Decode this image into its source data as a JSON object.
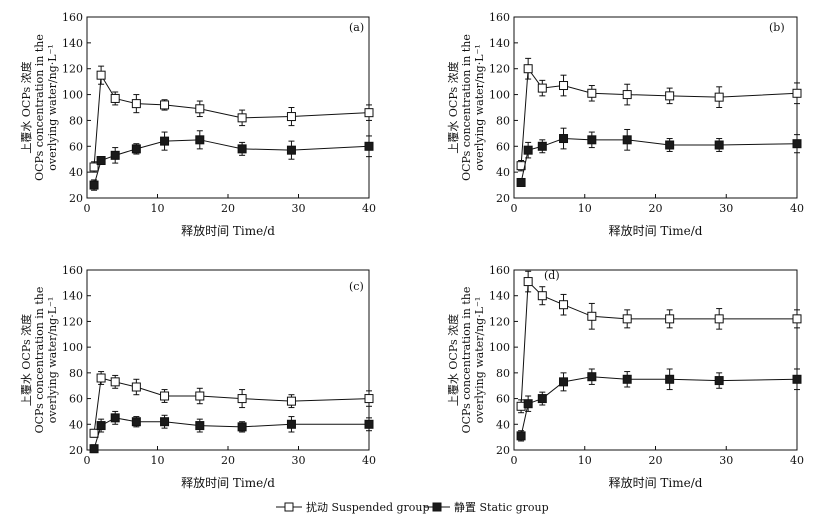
{
  "legend": {
    "suspended": "扰动 Suspended group",
    "static": "静置 Static group"
  },
  "colors": {
    "suspended_fill": "#ffffff",
    "static_fill": "#1a1a1a",
    "line": "#111111"
  },
  "chart_data": [
    {
      "panel": "(a)",
      "type": "line",
      "xlabel": "释放时间 Time/d",
      "ylabel_lines": [
        "上覆水 OCPs 浓度",
        "OCPs concentration in the",
        "overlying water/ng·L⁻¹"
      ],
      "xlim": [
        0,
        40
      ],
      "ylim": [
        20,
        160
      ],
      "xticks": [
        0,
        10,
        20,
        30,
        40
      ],
      "yticks": [
        20,
        40,
        60,
        80,
        100,
        120,
        140,
        160
      ],
      "x": [
        1,
        2,
        4,
        7,
        11,
        16,
        22,
        29,
        40
      ],
      "series": [
        {
          "name": "扰动 Suspended group",
          "marker": "open-square",
          "values": [
            44,
            115,
            97,
            93,
            92,
            89,
            82,
            83,
            86
          ],
          "errors": [
            4,
            7,
            5,
            7,
            4,
            6,
            6,
            7,
            6
          ]
        },
        {
          "name": "静置 Static group",
          "marker": "filled-square",
          "values": [
            30,
            49,
            53,
            58,
            64,
            65,
            58,
            57,
            60
          ],
          "errors": [
            4,
            3,
            6,
            4,
            7,
            7,
            5,
            7,
            8
          ]
        }
      ]
    },
    {
      "panel": "(b)",
      "type": "line",
      "xlabel": "释放时间 Time/d",
      "ylabel_lines": [
        "上覆水 OCPs 浓度",
        "OCPs concentration in the",
        "overlying water/ng·L⁻¹"
      ],
      "xlim": [
        0,
        40
      ],
      "ylim": [
        20,
        160
      ],
      "xticks": [
        0,
        10,
        20,
        30,
        40
      ],
      "yticks": [
        20,
        40,
        60,
        80,
        100,
        120,
        140,
        160
      ],
      "x": [
        1,
        2,
        4,
        7,
        11,
        16,
        22,
        29,
        40
      ],
      "series": [
        {
          "name": "扰动 Suspended group",
          "marker": "open-square",
          "values": [
            45,
            120,
            105,
            107,
            101,
            100,
            99,
            98,
            101
          ],
          "errors": [
            4,
            8,
            6,
            8,
            6,
            8,
            6,
            8,
            8
          ]
        },
        {
          "name": "静置 Static group",
          "marker": "filled-square",
          "values": [
            32,
            57,
            60,
            66,
            65,
            65,
            61,
            61,
            62
          ],
          "errors": [
            3,
            6,
            5,
            8,
            6,
            8,
            5,
            5,
            7
          ]
        }
      ]
    },
    {
      "panel": "(c)",
      "type": "line",
      "xlabel": "释放时间 Time/d",
      "ylabel_lines": [
        "上覆水 OCPs 浓度",
        "OCPs concentration in the",
        "overlying water/ng·L⁻¹"
      ],
      "xlim": [
        0,
        40
      ],
      "ylim": [
        20,
        160
      ],
      "xticks": [
        0,
        10,
        20,
        30,
        40
      ],
      "yticks": [
        20,
        40,
        60,
        80,
        100,
        120,
        140,
        160
      ],
      "x": [
        1,
        2,
        4,
        7,
        11,
        16,
        22,
        29,
        40
      ],
      "series": [
        {
          "name": "扰动 Suspended group",
          "marker": "open-square",
          "values": [
            33,
            76,
            73,
            69,
            62,
            62,
            60,
            58,
            60
          ],
          "errors": [
            3,
            5,
            5,
            6,
            5,
            6,
            7,
            5,
            6
          ]
        },
        {
          "name": "静置 Static group",
          "marker": "filled-square",
          "values": [
            21,
            39,
            45,
            42,
            42,
            39,
            38,
            40,
            40
          ],
          "errors": [
            3,
            5,
            5,
            4,
            5,
            5,
            4,
            6,
            5
          ]
        }
      ]
    },
    {
      "panel": "(d)",
      "type": "line",
      "xlabel": "释放时间 Time/d",
      "ylabel_lines": [
        "上覆水 OCPs 浓度",
        "OCPs concentration in the",
        "overlying water/ng·L⁻¹"
      ],
      "xlim": [
        0,
        40
      ],
      "ylim": [
        20,
        160
      ],
      "xticks": [
        0,
        10,
        20,
        30,
        40
      ],
      "yticks": [
        20,
        40,
        60,
        80,
        100,
        120,
        140,
        160
      ],
      "x": [
        1,
        2,
        4,
        7,
        11,
        16,
        22,
        29,
        40
      ],
      "series": [
        {
          "name": "扰动 Suspended group",
          "marker": "open-square",
          "values": [
            54,
            151,
            140,
            133,
            124,
            122,
            122,
            122,
            122
          ],
          "errors": [
            5,
            8,
            7,
            8,
            10,
            7,
            7,
            8,
            7
          ]
        },
        {
          "name": "静置 Static group",
          "marker": "filled-square",
          "values": [
            31,
            56,
            60,
            73,
            77,
            75,
            75,
            74,
            75
          ],
          "errors": [
            4,
            6,
            5,
            7,
            6,
            6,
            8,
            6,
            8
          ]
        }
      ]
    }
  ]
}
